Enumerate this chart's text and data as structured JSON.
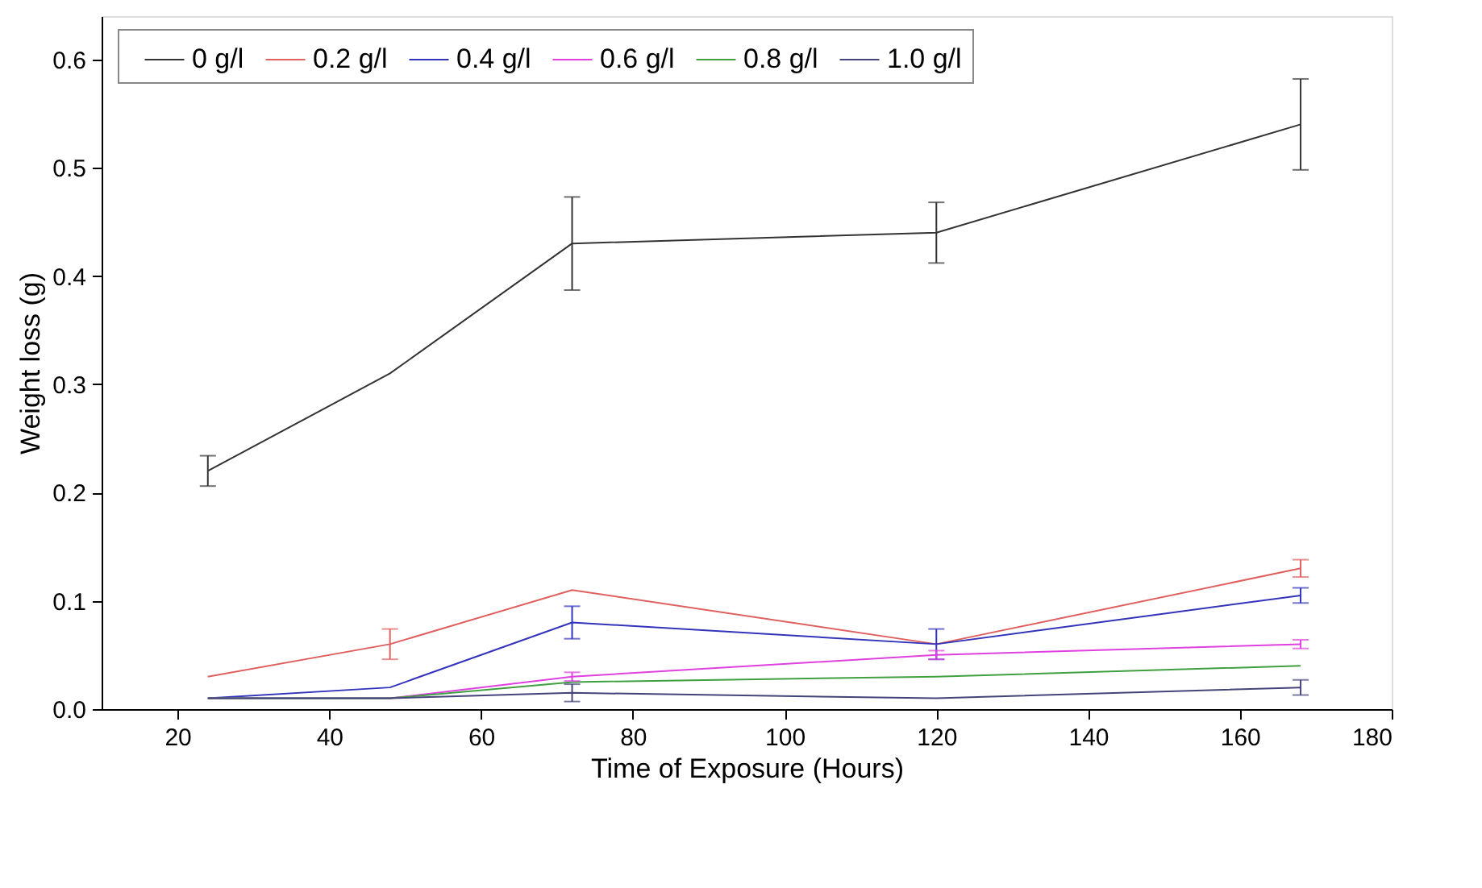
{
  "chart_data": {
    "type": "line",
    "xlabel": "Time of Exposure (Hours)",
    "ylabel": "Weight loss (g)",
    "x": [
      24,
      48,
      72,
      120,
      168
    ],
    "series": [
      {
        "name": "0 g/l",
        "color": "#333333",
        "values": [
          0.22,
          0.31,
          0.43,
          0.44,
          0.54
        ],
        "errors": [
          0.014,
          null,
          0.043,
          0.028,
          0.042
        ]
      },
      {
        "name": "0.2 g/l",
        "color": "#e06060",
        "values": [
          0.03,
          0.06,
          0.11,
          0.06,
          0.13
        ],
        "errors": [
          null,
          0.014,
          null,
          null,
          0.008
        ]
      },
      {
        "name": "0.4 g/l",
        "color": "#3333bb",
        "values": [
          0.01,
          0.02,
          0.08,
          0.06,
          0.105
        ],
        "errors": [
          null,
          null,
          0.015,
          0.014,
          0.007
        ]
      },
      {
        "name": "0.6 g/l",
        "color": "#e040e0",
        "values": [
          0.01,
          0.01,
          0.03,
          0.05,
          0.06
        ],
        "errors": [
          null,
          null,
          0.004,
          0.004,
          0.004
        ]
      },
      {
        "name": "0.8 g/l",
        "color": "#40a040",
        "values": [
          0.01,
          0.01,
          0.025,
          0.03,
          0.04
        ]
      },
      {
        "name": "1.0 g/l",
        "color": "#44447a",
        "values": [
          0.01,
          0.01,
          0.015,
          0.01,
          0.02
        ],
        "errors": [
          null,
          null,
          0.008,
          null,
          0.007
        ]
      }
    ],
    "xlim": [
      10,
      180
    ],
    "xticks": [
      20,
      40,
      60,
      80,
      100,
      120,
      140,
      160,
      180
    ],
    "ylim": [
      0,
      0.64
    ],
    "yticks": [
      {
        "value": 0,
        "label": "0.0"
      },
      0.1,
      0.2,
      0.3,
      0.4,
      0.5,
      0.6
    ],
    "grid": false,
    "legend": "top",
    "marker": "none",
    "line_style": "solid"
  }
}
